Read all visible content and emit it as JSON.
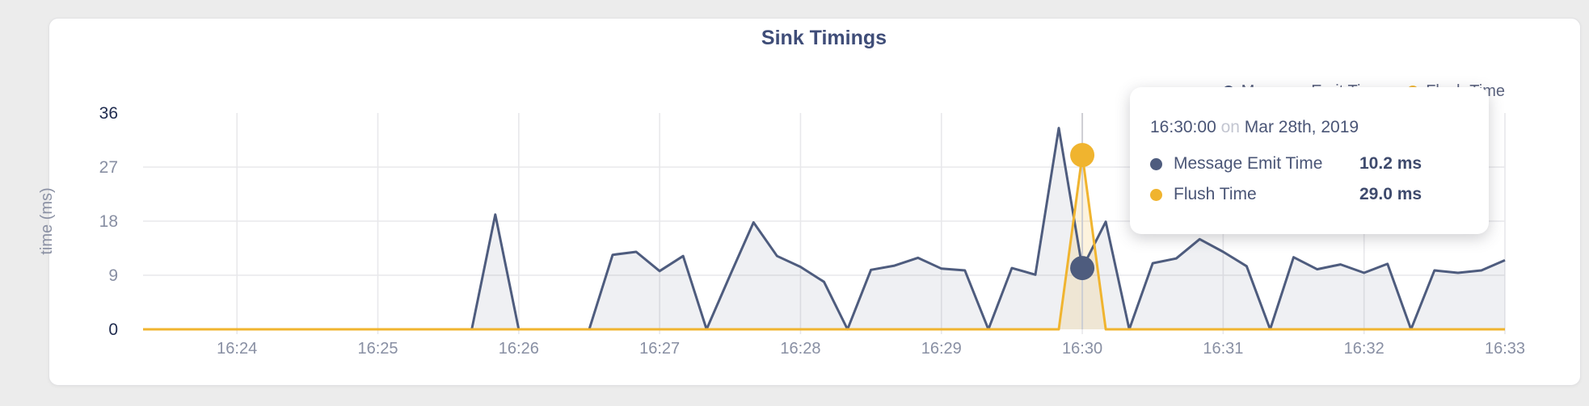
{
  "page": {
    "background": "#ececec"
  },
  "card": {
    "title": "Sink Timings"
  },
  "legend": {
    "items": [
      {
        "label": "Message Emit Time",
        "color": "#4e5c7e"
      },
      {
        "label": "Flush Time",
        "color": "#f0b42f"
      }
    ]
  },
  "tooltip": {
    "time": "16:30:00",
    "on_word": "on",
    "date": "Mar 28th, 2019",
    "rows": [
      {
        "label": "Message Emit Time",
        "value": "10.2 ms",
        "color": "#4e5c7e"
      },
      {
        "label": "Flush Time",
        "value": "29.0 ms",
        "color": "#f0b42f"
      }
    ]
  },
  "chart_data": {
    "type": "area",
    "title": "Sink Timings",
    "xlabel": "",
    "ylabel": "time (ms)",
    "ylim": [
      0,
      36
    ],
    "yticks": [
      0,
      9,
      18,
      27,
      36
    ],
    "grid": true,
    "legend_position": "top-right",
    "x_start": "16:23:20",
    "x_end": "16:33:00",
    "interval_seconds": 10,
    "x_tick_labels": [
      "16:24",
      "16:25",
      "16:26",
      "16:27",
      "16:28",
      "16:29",
      "16:30",
      "16:31",
      "16:32",
      "16:33"
    ],
    "x_tick_offsets_seconds": [
      40,
      100,
      160,
      220,
      280,
      340,
      400,
      460,
      520,
      580
    ],
    "series": [
      {
        "name": "Message Emit Time",
        "color": "#4e5c7e",
        "fill": "rgba(78,92,126,0.09)",
        "values": [
          0,
          0,
          0,
          0,
          0,
          0,
          0,
          0,
          0,
          0,
          0,
          0,
          0,
          0,
          0,
          19.1,
          0,
          0,
          0,
          0,
          12.4,
          12.9,
          9.7,
          12.2,
          0,
          9.0,
          17.8,
          12.2,
          10.4,
          7.9,
          0,
          9.9,
          10.6,
          11.9,
          10.1,
          9.8,
          0,
          10.2,
          9.1,
          33.5,
          10.2,
          17.9,
          0,
          11.0,
          11.8,
          15.0,
          12.9,
          10.5,
          0,
          12.0,
          10.0,
          10.8,
          9.4,
          10.9,
          0,
          9.8,
          9.4,
          9.8,
          11.5
        ]
      },
      {
        "name": "Flush Time",
        "color": "#f0b42f",
        "fill": "rgba(240,180,47,0.16)",
        "values": [
          0,
          0,
          0,
          0,
          0,
          0,
          0,
          0,
          0,
          0,
          0,
          0,
          0,
          0,
          0,
          0,
          0,
          0,
          0,
          0,
          0,
          0,
          0,
          0,
          0,
          0,
          0,
          0,
          0,
          0,
          0,
          0,
          0,
          0,
          0,
          0,
          0,
          0,
          0,
          0,
          29.0,
          0,
          0,
          0,
          0,
          0,
          0,
          0,
          0,
          0,
          0,
          0,
          0,
          0,
          0,
          0,
          0,
          0,
          0
        ]
      }
    ],
    "hover": {
      "index": 40,
      "time": "16:30:00",
      "values_ms": [
        10.2,
        29.0
      ]
    },
    "style": {
      "grid_color": "#e8e8eb",
      "hover_line_color": "#cdced3",
      "tick_label_color": "#888fa3",
      "tick_label_emphasis_color": "#1f2b4e",
      "axis_title_color": "#8b91a4"
    }
  }
}
